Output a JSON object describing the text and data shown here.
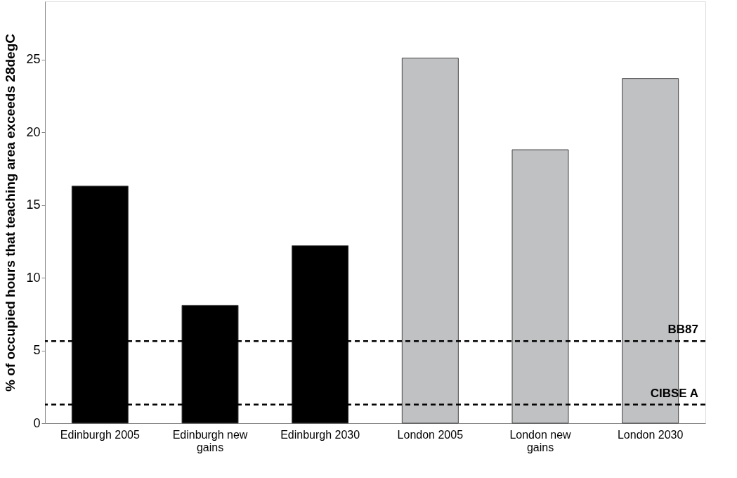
{
  "chart_data": {
    "type": "bar",
    "ylabel": "% of occupied hours that teaching area exceeds 28degC",
    "categories": [
      "Edinburgh 2005",
      "Edinburgh new gains",
      "Edinburgh 2030",
      "London 2005",
      "London new gains",
      "London 2030"
    ],
    "values": [
      16.3,
      8.1,
      12.2,
      25.1,
      18.8,
      23.7
    ],
    "colors": [
      "#000000",
      "#000000",
      "#000000",
      "#c0c1c3",
      "#c0c1c3",
      "#c0c1c3"
    ],
    "ylim": [
      0,
      29
    ],
    "yticks": [
      0,
      5,
      10,
      15,
      20,
      25
    ],
    "grid": false,
    "ref_lines": [
      {
        "axis": "y",
        "value": 5.64,
        "label": "BB87",
        "color": "#000000",
        "line_style": "dashed"
      },
      {
        "axis": "y",
        "value": 1.28,
        "label": "CIBSE A",
        "color": "#000000",
        "line_style": "dashed"
      }
    ]
  }
}
